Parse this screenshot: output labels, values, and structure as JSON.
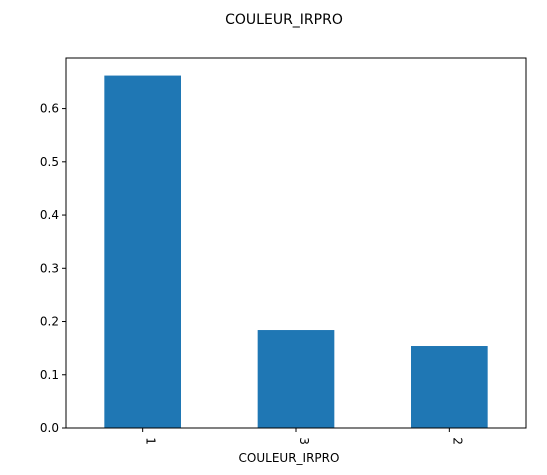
{
  "chart_data": {
    "type": "bar",
    "title": "COULEUR_IRPRO",
    "xlabel": "COULEUR_IRPRO",
    "ylabel": "",
    "categories": [
      "1",
      "3",
      "2"
    ],
    "values": [
      0.662,
      0.184,
      0.154
    ],
    "ylim": [
      0,
      0.695
    ],
    "yticks": [
      "0.0",
      "0.1",
      "0.2",
      "0.3",
      "0.4",
      "0.5",
      "0.6"
    ],
    "grid": false,
    "bar_color": "#1f77b4"
  }
}
